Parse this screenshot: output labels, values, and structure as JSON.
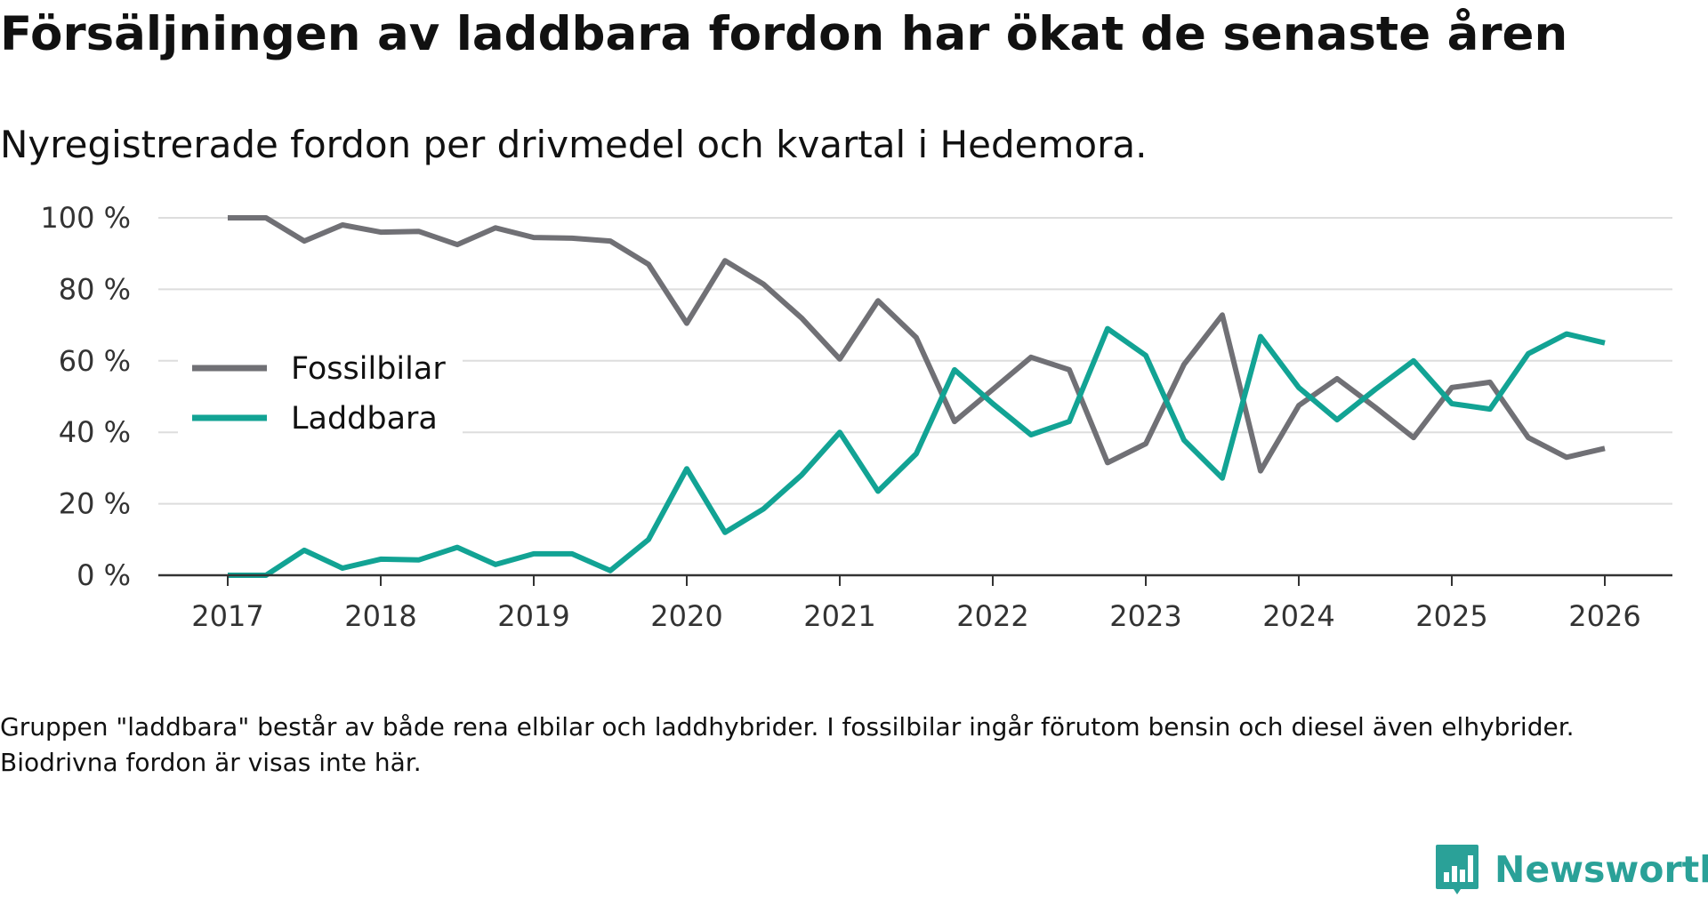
{
  "title": "Försäljningen av laddbara fordon har ökat de senaste åren",
  "subtitle": "Nyregistrerade fordon per drivmedel och kvartal i Hedemora.",
  "footnote": "Gruppen \"laddbara\" består av både rena elbilar och laddhybrider. I fossilbilar ingår förutom bensin och diesel även elhybrider. Biodrivna fordon är visas inte här.",
  "brand": {
    "name": "Newsworthy",
    "color": "#2aa198",
    "icon": "bar-chart-speech-bubble-icon"
  },
  "chart_data": {
    "type": "line",
    "title": "Försäljningen av laddbara fordon har ökat de senaste åren",
    "subtitle": "Nyregistrerade fordon per drivmedel och kvartal i Hedemora.",
    "xlabel": "",
    "ylabel": "",
    "xlim": [
      2017,
      2026
    ],
    "ylim": [
      0,
      100
    ],
    "grid": true,
    "legend_position": "left-middle",
    "x_ticks": [
      2017,
      2018,
      2019,
      2020,
      2021,
      2022,
      2023,
      2024,
      2025,
      2026
    ],
    "x_tick_labels": [
      "2017",
      "2018",
      "2019",
      "2020",
      "2021",
      "2022",
      "2023",
      "2024",
      "2025",
      "2026"
    ],
    "y_ticks": [
      0,
      20,
      40,
      60,
      80,
      100
    ],
    "y_tick_labels": [
      "0 %",
      "20 %",
      "40 %",
      "60 %",
      "80 %",
      "100 %"
    ],
    "x": [
      2017.0,
      2017.25,
      2017.5,
      2017.75,
      2018.0,
      2018.25,
      2018.5,
      2018.75,
      2019.0,
      2019.25,
      2019.5,
      2019.75,
      2020.0,
      2020.25,
      2020.5,
      2020.75,
      2021.0,
      2021.25,
      2021.5,
      2021.75,
      2022.0,
      2022.25,
      2022.5,
      2022.75,
      2023.0,
      2023.25,
      2023.5,
      2023.75,
      2024.0,
      2024.25,
      2024.5,
      2024.75,
      2025.0,
      2025.25,
      2025.5,
      2025.75,
      2026.0
    ],
    "series": [
      {
        "name": "Fossilbilar",
        "color": "#707075",
        "values": [
          100,
          100,
          93.5,
          98.0,
          96.0,
          96.2,
          92.5,
          97.2,
          94.5,
          94.3,
          93.5,
          87.0,
          70.5,
          88.0,
          81.5,
          72.0,
          60.5,
          76.8,
          66.5,
          43.0,
          52.0,
          61.0,
          57.5,
          31.5,
          36.8,
          59.0,
          72.8,
          29.2,
          47.5,
          55.0,
          47.0,
          38.5,
          52.5,
          54.0,
          38.5,
          33.0,
          35.5
        ]
      },
      {
        "name": "Laddbara",
        "color": "#12a394",
        "values": [
          0,
          0,
          7.0,
          2.0,
          4.5,
          4.3,
          7.8,
          3.0,
          6.0,
          6.0,
          1.3,
          10.0,
          29.8,
          12.0,
          18.5,
          28.0,
          40.0,
          23.5,
          34.0,
          57.5,
          48.0,
          39.3,
          43.0,
          69.0,
          61.5,
          37.8,
          27.2,
          66.8,
          52.5,
          43.5,
          52.0,
          60.0,
          48.0,
          46.5,
          62.0,
          67.5,
          65.0
        ]
      }
    ]
  }
}
